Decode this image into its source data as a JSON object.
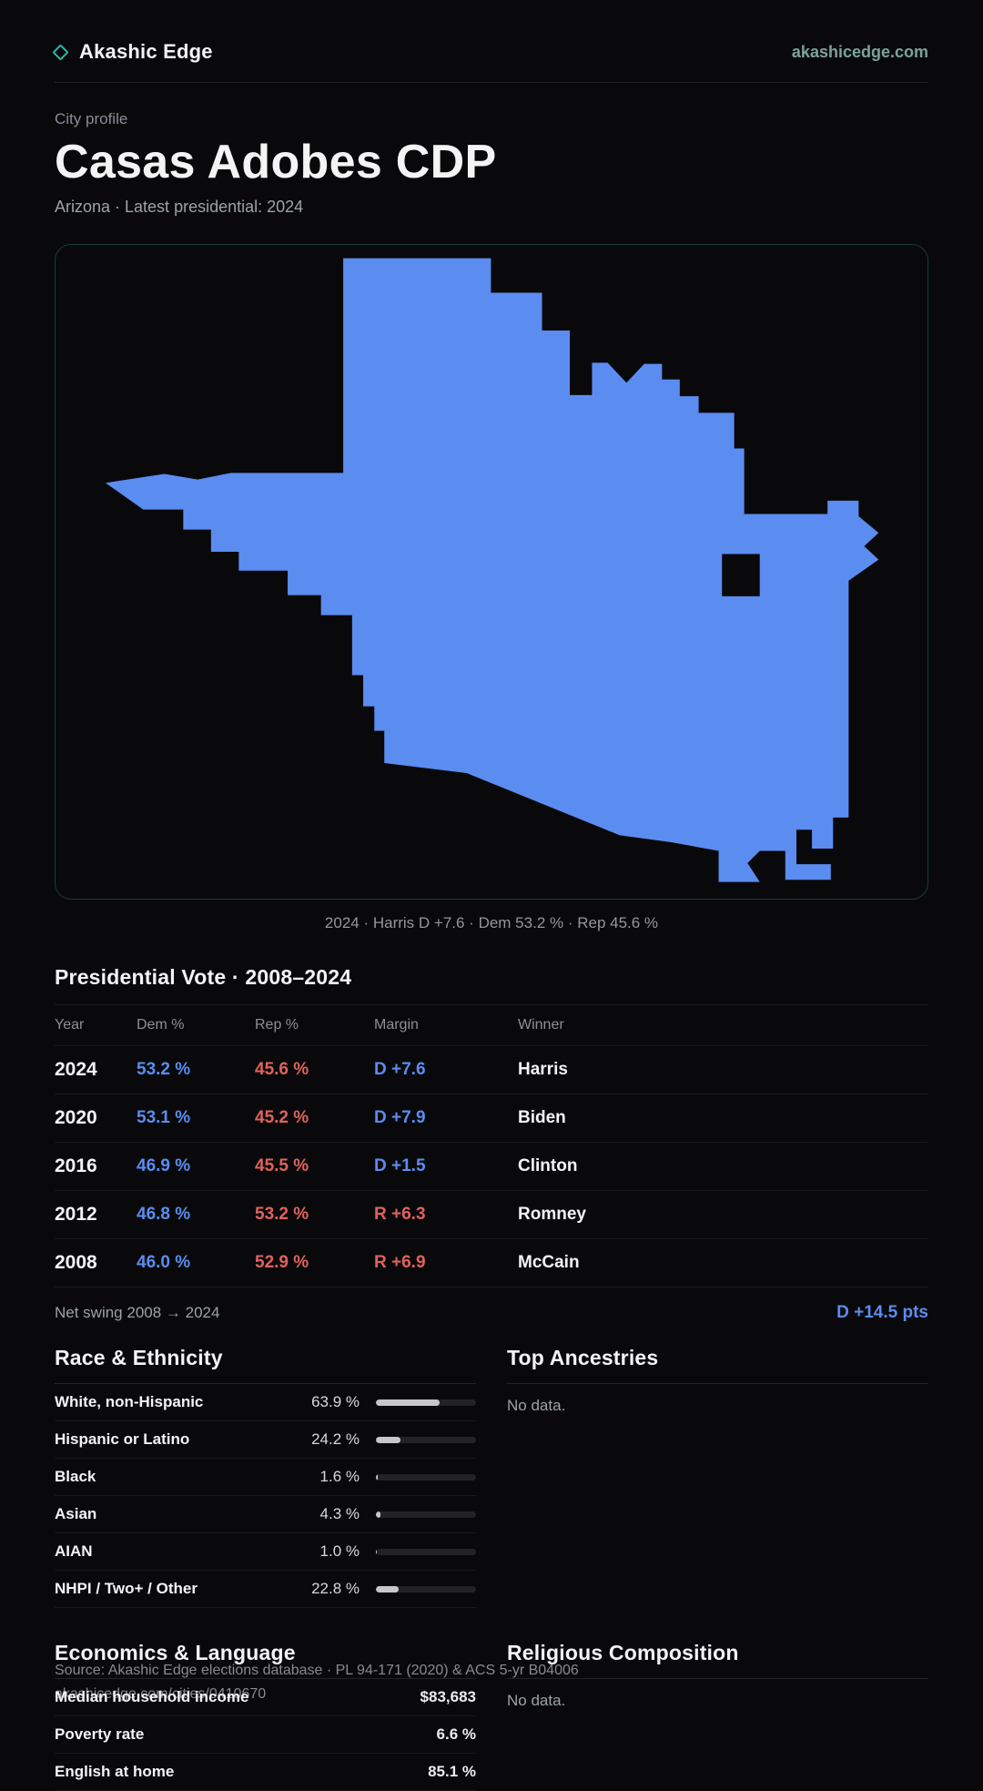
{
  "brand": {
    "name": "Akashic Edge",
    "domain": "akashicedge.com"
  },
  "page": {
    "eyebrow": "City profile",
    "title": "Casas Adobes CDP",
    "subtitle": "Arizona · Latest presidential: 2024"
  },
  "map": {
    "caption": "2024 · Harris D +7.6 · Dem 53.2 % · Rep 45.6 %",
    "fill_color": "#5b8cf0"
  },
  "vote_table": {
    "title": "Presidential Vote · 2008–2024",
    "columns": [
      "Year",
      "Dem %",
      "Rep %",
      "Margin",
      "Winner"
    ],
    "rows": [
      {
        "year": "2024",
        "dem": "53.2 %",
        "rep": "45.6 %",
        "margin": "D +7.6",
        "party": "D",
        "winner": "Harris"
      },
      {
        "year": "2020",
        "dem": "53.1 %",
        "rep": "45.2 %",
        "margin": "D +7.9",
        "party": "D",
        "winner": "Biden"
      },
      {
        "year": "2016",
        "dem": "46.9 %",
        "rep": "45.5 %",
        "margin": "D +1.5",
        "party": "D",
        "winner": "Clinton"
      },
      {
        "year": "2012",
        "dem": "46.8 %",
        "rep": "53.2 %",
        "margin": "R +6.3",
        "party": "R",
        "winner": "Romney"
      },
      {
        "year": "2008",
        "dem": "46.0 %",
        "rep": "52.9 %",
        "margin": "R +6.9",
        "party": "R",
        "winner": "McCain"
      }
    ],
    "net_swing_label": "Net swing 2008 → 2024",
    "net_swing_value": "D +14.5 pts"
  },
  "race": {
    "title": "Race & Ethnicity",
    "rows": [
      {
        "label": "White, non-Hispanic",
        "value": "63.9 %",
        "pct": 63.9
      },
      {
        "label": "Hispanic or Latino",
        "value": "24.2 %",
        "pct": 24.2
      },
      {
        "label": "Black",
        "value": "1.6 %",
        "pct": 1.6
      },
      {
        "label": "Asian",
        "value": "4.3 %",
        "pct": 4.3
      },
      {
        "label": "AIAN",
        "value": "1.0 %",
        "pct": 1.0
      },
      {
        "label": "NHPI / Two+ / Other",
        "value": "22.8 %",
        "pct": 22.8
      }
    ]
  },
  "ancestries": {
    "title": "Top Ancestries",
    "empty": "No data."
  },
  "economics": {
    "title": "Economics & Language",
    "rows": [
      {
        "label": "Median household income",
        "value": "$83,683"
      },
      {
        "label": "Poverty rate",
        "value": "6.6 %"
      },
      {
        "label": "English at home",
        "value": "85.1 %"
      }
    ]
  },
  "religion": {
    "title": "Religious Composition",
    "empty": "No data."
  },
  "footer": {
    "line1": "Source: Akashic Edge elections database · PL 94-171 (2020) & ACS 5-yr B04006",
    "line2": "akashicedge.com/cities/0410670"
  }
}
